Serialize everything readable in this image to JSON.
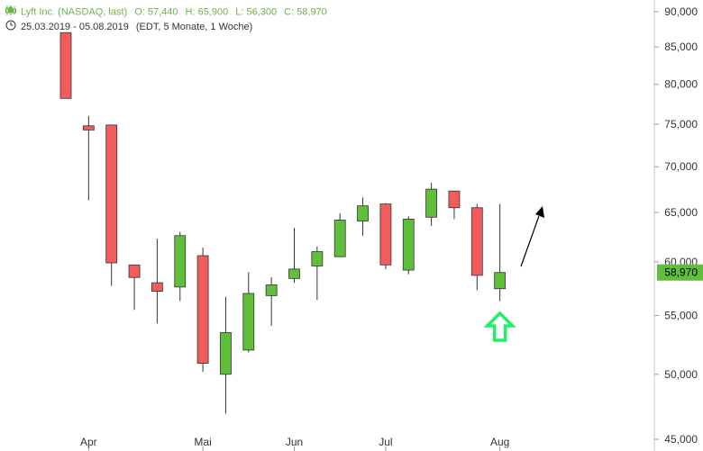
{
  "header": {
    "symbol_label": "Lyft Inc. (NASDAQ, last)",
    "open_label": "O: 57,440",
    "high_label": "H: 65,900",
    "low_label": "L: 56,300",
    "close_label": "C: 58,970",
    "date_range": "25.03.2019 - 05.08.2019",
    "period_label": "(EDT, 5 Monate, 1 Woche)",
    "chart_icon": "candlestick-icon",
    "clock_icon": "clock-icon"
  },
  "colors": {
    "up": "#5fbf3a",
    "down": "#f25c5c",
    "outline": "#333333",
    "axis": "#cccccc",
    "last_price_bg": "#5fbf3a",
    "arrow_hint": "#22ee66",
    "info_text": "#6ab545"
  },
  "chart_data": {
    "type": "candlestick",
    "scale": "log",
    "ylim": [
      45000,
      90000
    ],
    "y_ticks": [
      {
        "value": 90000,
        "label": "90,000"
      },
      {
        "value": 85000,
        "label": "85,000"
      },
      {
        "value": 80000,
        "label": "80,000"
      },
      {
        "value": 75000,
        "label": "75,000"
      },
      {
        "value": 70000,
        "label": "70,000"
      },
      {
        "value": 65000,
        "label": "65,000"
      },
      {
        "value": 60000,
        "label": "60,000"
      },
      {
        "value": 55000,
        "label": "55,000"
      },
      {
        "value": 50000,
        "label": "50,000"
      },
      {
        "value": 45000,
        "label": "45,000"
      }
    ],
    "x_labels": [
      {
        "label": "Apr",
        "index": 1
      },
      {
        "label": "Mai",
        "index": 6
      },
      {
        "label": "Jun",
        "index": 10
      },
      {
        "label": "Jul",
        "index": 14
      },
      {
        "label": "Aug",
        "index": 19
      }
    ],
    "last_price": {
      "value": 58970,
      "label": "58,970"
    },
    "candles": [
      {
        "open": 87000,
        "high": 87000,
        "low": 78200,
        "close": 78200
      },
      {
        "open": 74800,
        "high": 76000,
        "low": 66300,
        "close": 74300
      },
      {
        "open": 74900,
        "high": 74900,
        "low": 57700,
        "close": 59900
      },
      {
        "open": 59700,
        "high": 59700,
        "low": 55500,
        "close": 58500
      },
      {
        "open": 58000,
        "high": 62300,
        "low": 54300,
        "close": 57200
      },
      {
        "open": 57600,
        "high": 63000,
        "low": 56300,
        "close": 62600
      },
      {
        "open": 60600,
        "high": 61400,
        "low": 50200,
        "close": 50900
      },
      {
        "open": 50000,
        "high": 56700,
        "low": 46900,
        "close": 53500
      },
      {
        "open": 52000,
        "high": 59000,
        "low": 51800,
        "close": 57000
      },
      {
        "open": 56800,
        "high": 58500,
        "low": 54100,
        "close": 57800
      },
      {
        "open": 58400,
        "high": 63400,
        "low": 58000,
        "close": 59300
      },
      {
        "open": 59600,
        "high": 61500,
        "low": 56400,
        "close": 61000
      },
      {
        "open": 60500,
        "high": 64900,
        "low": 60500,
        "close": 64200
      },
      {
        "open": 64100,
        "high": 66600,
        "low": 62600,
        "close": 65700
      },
      {
        "open": 65900,
        "high": 66000,
        "low": 59300,
        "close": 59700
      },
      {
        "open": 59200,
        "high": 64600,
        "low": 58800,
        "close": 64300
      },
      {
        "open": 64500,
        "high": 68200,
        "low": 63600,
        "close": 67500
      },
      {
        "open": 67300,
        "high": 67300,
        "low": 64300,
        "close": 65500
      },
      {
        "open": 65500,
        "high": 65900,
        "low": 57300,
        "close": 58700
      },
      {
        "open": 57440,
        "high": 65900,
        "low": 56300,
        "close": 58970
      }
    ]
  }
}
